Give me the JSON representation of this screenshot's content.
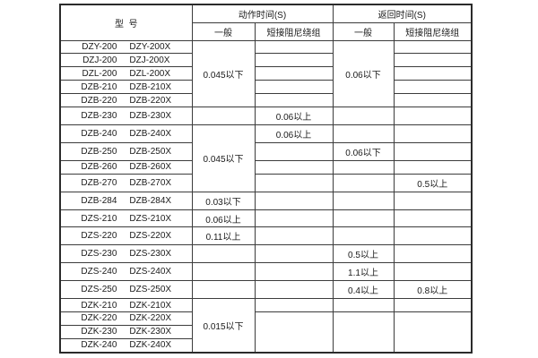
{
  "header": {
    "model": "型  号",
    "action_time": "动作时间(S)",
    "return_time": "返回时间(S)",
    "general": "一般",
    "short_damping": "短接阻尼绕组"
  },
  "colors": {
    "border": "#3c3c3c",
    "text": "#1a1a1a",
    "background": "#ffffff"
  },
  "rows": [
    {
      "models": [
        "DZY-200",
        "DZY-200X"
      ],
      "act_gen": {
        "text": "0.045以下",
        "rowspan": 5
      },
      "act_short": {},
      "ret_gen": {
        "text": "0.06以下",
        "rowspan": 5
      },
      "ret_short": {}
    },
    {
      "models": [
        "DZJ-200",
        "DZJ-200X"
      ],
      "act_gen": null,
      "act_short": {},
      "ret_gen": null,
      "ret_short": {}
    },
    {
      "models": [
        "DZL-200",
        "DZL-200X"
      ],
      "act_gen": null,
      "act_short": {},
      "ret_gen": null,
      "ret_short": {}
    },
    {
      "models": [
        "DZB-210",
        "DZB-210X"
      ],
      "act_gen": null,
      "act_short": {},
      "ret_gen": null,
      "ret_short": {}
    },
    {
      "models": [
        "DZB-220",
        "DZB-220X"
      ],
      "act_gen": null,
      "act_short": {},
      "ret_gen": null,
      "ret_short": {}
    },
    {
      "models": [
        "DZB-230",
        "DZB-230X"
      ],
      "act_gen": {},
      "act_short": {
        "text": "0.06以上"
      },
      "ret_gen": {},
      "ret_short": {}
    },
    {
      "models": [
        "DZB-240",
        "DZB-240X"
      ],
      "act_gen": {
        "text": "0.045以下",
        "rowspan": 4
      },
      "act_short": {
        "text": "0.06以上"
      },
      "ret_gen": {},
      "ret_short": {}
    },
    {
      "models": [
        "DZB-250",
        "DZB-250X"
      ],
      "act_gen": null,
      "act_short": {},
      "ret_gen": {
        "text": "0.06以下"
      },
      "ret_short": {}
    },
    {
      "models": [
        "DZB-260",
        "DZB-260X"
      ],
      "act_gen": null,
      "act_short": {},
      "ret_gen": {},
      "ret_short": {}
    },
    {
      "models": [
        "DZB-270",
        "DZB-270X"
      ],
      "act_gen": null,
      "act_short": {},
      "ret_gen": {},
      "ret_short": {
        "text": "0.5以上"
      }
    },
    {
      "models": [
        "DZB-284",
        "DZB-284X"
      ],
      "act_gen": {
        "text": "0.03以下"
      },
      "act_short": {},
      "ret_gen": {},
      "ret_short": {}
    },
    {
      "models": [
        "DZS-210",
        "DZS-210X"
      ],
      "act_gen": {
        "text": "0.06以上"
      },
      "act_short": {},
      "ret_gen": {},
      "ret_short": {}
    },
    {
      "models": [
        "DZS-220",
        "DZS-220X"
      ],
      "act_gen": {
        "text": "0.11以上"
      },
      "act_short": {},
      "ret_gen": {},
      "ret_short": {}
    },
    {
      "models": [
        "DZS-230",
        "DZS-230X"
      ],
      "act_gen": {},
      "act_short": {},
      "ret_gen": {
        "text": "0.5以上"
      },
      "ret_short": {}
    },
    {
      "models": [
        "DZS-240",
        "DZS-240X"
      ],
      "act_gen": {},
      "act_short": {},
      "ret_gen": {
        "text": "1.1以上"
      },
      "ret_short": {}
    },
    {
      "models": [
        "DZS-250",
        "DZS-250X"
      ],
      "act_gen": {},
      "act_short": {},
      "ret_gen": {
        "text": "0.4以上"
      },
      "ret_short": {
        "text": "0.8以上"
      }
    },
    {
      "models": [
        "DZK-210",
        "DZK-210X"
      ],
      "act_gen": {
        "text": "0.015以下",
        "rowspan": 4
      },
      "act_short": {},
      "ret_gen": {},
      "ret_short": {}
    },
    {
      "models": [
        "DZK-220",
        "DZK-220X"
      ],
      "act_gen": null,
      "act_short": {
        "rowspan": 3
      },
      "ret_gen": {
        "rowspan": 3
      },
      "ret_short": {
        "rowspan": 3
      }
    },
    {
      "models": [
        "DZK-230",
        "DZK-230X"
      ],
      "act_gen": null,
      "act_short": null,
      "ret_gen": null,
      "ret_short": null
    },
    {
      "models": [
        "DZK-240",
        "DZK-240X"
      ],
      "act_gen": null,
      "act_short": null,
      "ret_gen": null,
      "ret_short": null
    }
  ]
}
